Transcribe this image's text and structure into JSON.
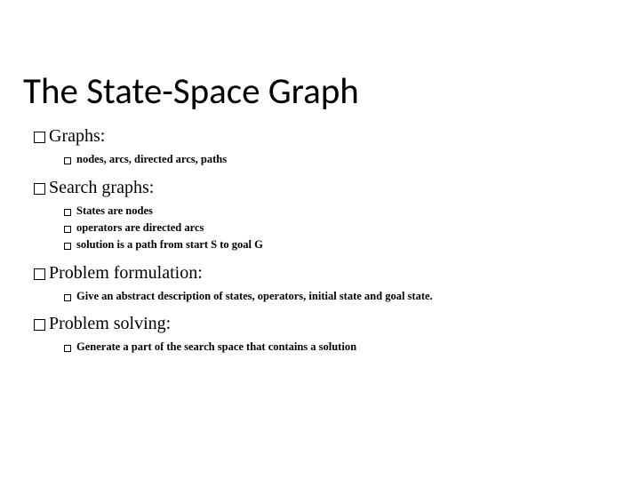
{
  "title": "The State-Space Graph",
  "sections": [
    {
      "heading": "Graphs:",
      "items": [
        "nodes, arcs, directed arcs, paths"
      ]
    },
    {
      "heading": "Search graphs:",
      "items": [
        "States are nodes",
        "operators are directed arcs",
        "solution is a path from start S to goal G"
      ]
    },
    {
      "heading": "Problem formulation:",
      "items": [
        "Give an abstract description of states, operators, initial state and goal state."
      ]
    },
    {
      "heading": "Problem solving:",
      "items": [
        "Generate a part of the search space that contains a solution"
      ]
    }
  ]
}
